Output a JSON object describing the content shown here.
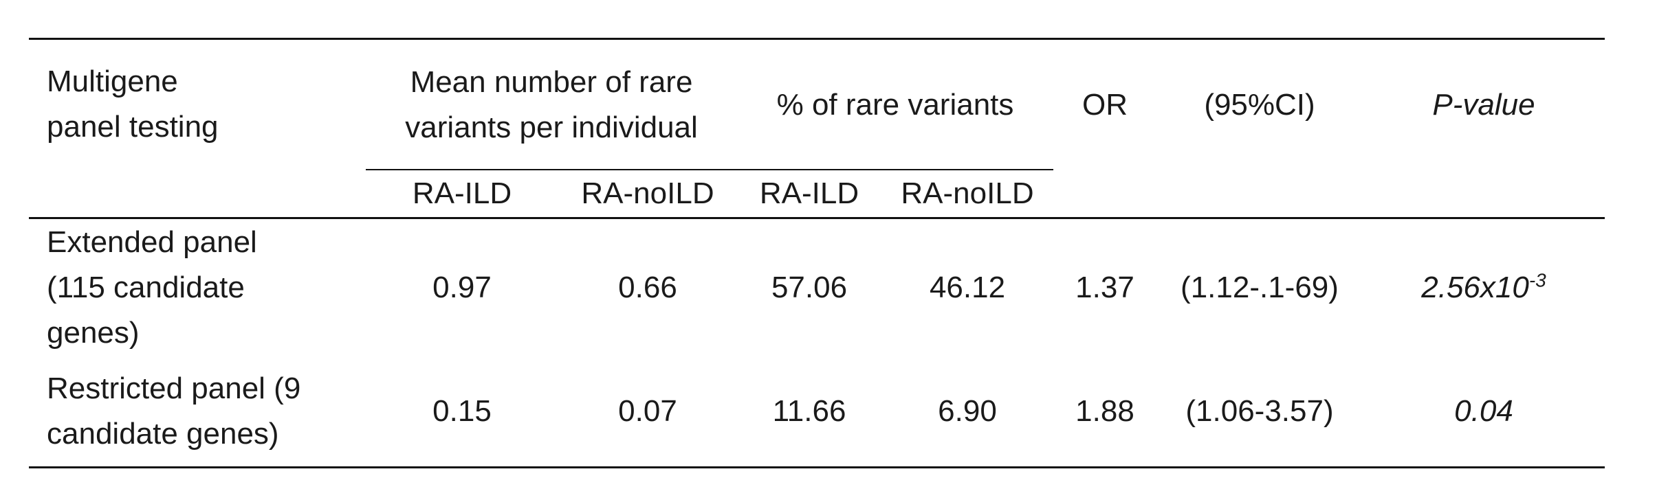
{
  "table": {
    "header": {
      "col_panel": "Multigene panel testing",
      "col_mean": "Mean number of rare variants per individual",
      "col_pct": "% of rare variants",
      "col_or": "OR",
      "col_ci": "(95%CI)",
      "col_p": "P-value",
      "sub": {
        "mean_ild": "RA-ILD",
        "mean_noild": "RA-noILD",
        "pct_ild": "RA-ILD",
        "pct_noild": "RA-noILD"
      }
    },
    "rows": [
      {
        "panel": "Extended panel (115 candidate genes)",
        "mean_ild": "0.97",
        "mean_noild": "0.66",
        "pct_ild": "57.06",
        "pct_noild": "46.12",
        "or": "1.37",
        "ci": "(1.12-.1-69)",
        "p_base": "2.56x10",
        "p_exp": "-3"
      },
      {
        "panel": "Restricted panel (9 candidate genes)",
        "mean_ild": "0.15",
        "mean_noild": "0.07",
        "pct_ild": "11.66",
        "pct_noild": "6.90",
        "or": "1.88",
        "ci": "(1.06-3.57)",
        "p_base": "0.04",
        "p_exp": ""
      }
    ]
  }
}
